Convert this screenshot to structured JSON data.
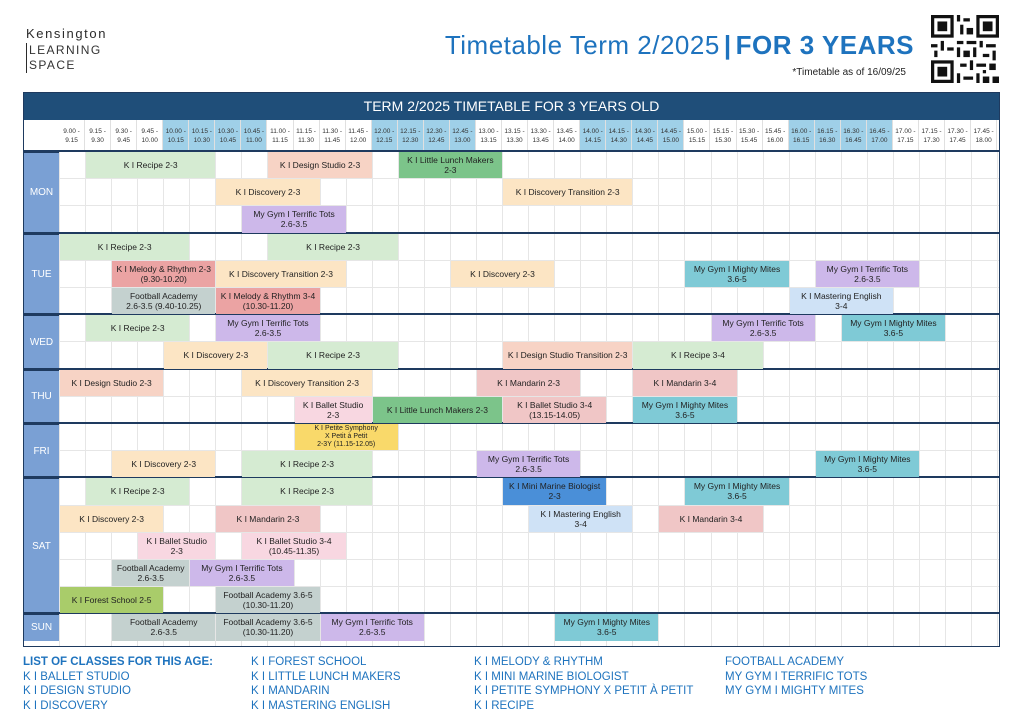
{
  "logo": {
    "line1": "Kensington",
    "line2": "LEARNING",
    "line3": "SPACE"
  },
  "header": {
    "title_main": "Timetable Term 2/2025",
    "title_sep": "|",
    "title_bold": "FOR 3 YEARS",
    "as_of": "*Timetable as of 16/09/25"
  },
  "banner": "TERM 2/2025 TIMETABLE FOR 3 YEARS OLD",
  "colors": {
    "recipe": "#d5ebd2",
    "design": "#f7d3c5",
    "lunch": "#7cc48a",
    "discovery": "#fce5c4",
    "gym": "#cdb8ea",
    "melody": "#eba3a3",
    "football": "#c4d1cf",
    "mandarin": "#f0c6c6",
    "ballet": "#f8d7e1",
    "mightymites": "#7fcad6",
    "mastering": "#cfe2f6",
    "petite": "#f9d96a",
    "marine": "#4a8fd8",
    "forest": "#a9cc6a",
    "slot_a": "#ffffff",
    "slot_b": "#9fd0e8",
    "day_bg": "#7aa0d4",
    "banner_bg": "#1f4e79",
    "accent": "#1e73be"
  },
  "slots": [
    "9.00 - 9.15",
    "9.15 - 9.30",
    "9.30 - 9.45",
    "9.45 - 10.00",
    "10.00 - 10.15",
    "10.15 - 10.30",
    "10.30 - 10.45",
    "10.45 - 11.00",
    "11.00 - 11.15",
    "11.15 - 11.30",
    "11.30 - 11.45",
    "11.45 - 12.00",
    "12.00 - 12.15",
    "12.15 - 12.30",
    "12.30 - 12.45",
    "12.45 - 13.00",
    "13.00 - 13.15",
    "13.15 - 13.30",
    "13.30 - 13.45",
    "13.45 - 14.00",
    "14.00 - 14.15",
    "14.15 - 14.30",
    "14.30 - 14.45",
    "14.45 - 15.00",
    "15.00 - 15.15",
    "15.15 - 15.30",
    "15.30 - 15.45",
    "15.45 - 16.00",
    "16.00 - 16.15",
    "16.15 - 16.30",
    "16.30 - 16.45",
    "16.45 - 17.00",
    "17.00 - 17.15",
    "17.15 - 17.30",
    "17.30 - 17.45",
    "17.45 - 18.00"
  ],
  "days": [
    {
      "name": "MON",
      "rows": 3
    },
    {
      "name": "TUE",
      "rows": 3
    },
    {
      "name": "WED",
      "rows": 2
    },
    {
      "name": "THU",
      "rows": 2
    },
    {
      "name": "FRI",
      "rows": 2
    },
    {
      "name": "SAT",
      "rows": 5
    },
    {
      "name": "SUN",
      "rows": 1
    }
  ],
  "classes": [
    {
      "label": "K I Recipe 2-3",
      "row": 0,
      "start": 1,
      "span": 5,
      "color": "recipe"
    },
    {
      "label": "K I Design Studio 2-3",
      "row": 0,
      "start": 8,
      "span": 4,
      "color": "design"
    },
    {
      "label": "K I Little Lunch Makers\n2-3",
      "row": 0,
      "start": 13,
      "span": 4,
      "color": "lunch"
    },
    {
      "label": "K I Discovery 2-3",
      "row": 1,
      "start": 6,
      "span": 4,
      "color": "discovery"
    },
    {
      "label": "K I Discovery Transition 2-3",
      "row": 1,
      "start": 17,
      "span": 5,
      "color": "discovery"
    },
    {
      "label": "My Gym I Terrific Tots\n2.6-3.5",
      "row": 2,
      "start": 7,
      "span": 4,
      "color": "gym"
    },
    {
      "label": "K I Recipe 2-3",
      "row": 3,
      "start": 0,
      "span": 5,
      "color": "recipe"
    },
    {
      "label": "K I Recipe 2-3",
      "row": 3,
      "start": 8,
      "span": 5,
      "color": "recipe"
    },
    {
      "label": "K I Melody & Rhythm 2-3\n(9.30-10.20)",
      "row": 4,
      "start": 2,
      "span": 4,
      "color": "melody"
    },
    {
      "label": "K I Discovery Transition 2-3",
      "row": 4,
      "start": 6,
      "span": 5,
      "color": "discovery"
    },
    {
      "label": "K I Discovery 2-3",
      "row": 4,
      "start": 15,
      "span": 4,
      "color": "discovery"
    },
    {
      "label": "My Gym I Mighty Mites\n3.6-5",
      "row": 4,
      "start": 24,
      "span": 4,
      "color": "mightymites"
    },
    {
      "label": "My Gym I Terrific Tots\n2.6-3.5",
      "row": 4,
      "start": 29,
      "span": 4,
      "color": "gym"
    },
    {
      "label": "Football Academy\n2.6-3.5 (9.40-10.25)",
      "row": 5,
      "start": 2,
      "span": 4,
      "color": "football"
    },
    {
      "label": "K I Melody & Rhythm 3-4\n(10.30-11.20)",
      "row": 5,
      "start": 6,
      "span": 4,
      "color": "melody"
    },
    {
      "label": "K I Mastering English\n3-4",
      "row": 5,
      "start": 28,
      "span": 4,
      "color": "mastering"
    },
    {
      "label": "K I Recipe 2-3",
      "row": 6,
      "start": 1,
      "span": 4,
      "color": "recipe"
    },
    {
      "label": "My Gym I Terrific Tots\n2.6-3.5",
      "row": 6,
      "start": 6,
      "span": 4,
      "color": "gym"
    },
    {
      "label": "My Gym I Terrific Tots\n2.6-3.5",
      "row": 6,
      "start": 25,
      "span": 4,
      "color": "gym"
    },
    {
      "label": "My Gym I Mighty Mites\n3.6-5",
      "row": 6,
      "start": 30,
      "span": 4,
      "color": "mightymites"
    },
    {
      "label": "K I Discovery 2-3",
      "row": 7,
      "start": 4,
      "span": 4,
      "color": "discovery"
    },
    {
      "label": "K I Recipe 2-3",
      "row": 7,
      "start": 8,
      "span": 5,
      "color": "recipe"
    },
    {
      "label": "K I Design Studio Transition 2-3",
      "row": 7,
      "start": 17,
      "span": 5,
      "color": "design"
    },
    {
      "label": "K I Recipe 3-4",
      "row": 7,
      "start": 22,
      "span": 5,
      "color": "recipe"
    },
    {
      "label": "K I Design Studio 2-3",
      "row": 8,
      "start": 0,
      "span": 4,
      "color": "design"
    },
    {
      "label": "K I Discovery Transition 2-3",
      "row": 8,
      "start": 7,
      "span": 5,
      "color": "discovery"
    },
    {
      "label": "K I Mandarin 2-3",
      "row": 8,
      "start": 16,
      "span": 4,
      "color": "mandarin"
    },
    {
      "label": "K I Mandarin 3-4",
      "row": 8,
      "start": 22,
      "span": 4,
      "color": "mandarin"
    },
    {
      "label": "K I Ballet Studio\n2-3",
      "row": 9,
      "start": 9,
      "span": 3,
      "color": "ballet"
    },
    {
      "label": "K I Little Lunch Makers 2-3",
      "row": 9,
      "start": 12,
      "span": 5,
      "color": "lunch"
    },
    {
      "label": "K I Ballet Studio 3-4\n(13.15-14.05)",
      "row": 9,
      "start": 17,
      "span": 4,
      "color": "mandarin"
    },
    {
      "label": "My Gym I Mighty Mites\n3.6-5",
      "row": 9,
      "start": 22,
      "span": 4,
      "color": "mightymites"
    },
    {
      "label": "K I Petite Symphony\nX Petit à Petit\n2-3Y (11.15-12.05)",
      "row": 10,
      "start": 9,
      "span": 4,
      "color": "petite"
    },
    {
      "label": "K I Discovery 2-3",
      "row": 11,
      "start": 2,
      "span": 4,
      "color": "discovery"
    },
    {
      "label": "K I Recipe 2-3",
      "row": 11,
      "start": 7,
      "span": 5,
      "color": "recipe"
    },
    {
      "label": "My Gym I Terrific Tots\n2.6-3.5",
      "row": 11,
      "start": 16,
      "span": 4,
      "color": "gym"
    },
    {
      "label": "My Gym I Mighty Mites\n3.6-5",
      "row": 11,
      "start": 29,
      "span": 4,
      "color": "mightymites"
    },
    {
      "label": "K I Recipe 2-3",
      "row": 12,
      "start": 1,
      "span": 4,
      "color": "recipe"
    },
    {
      "label": "K I Recipe 2-3",
      "row": 12,
      "start": 7,
      "span": 5,
      "color": "recipe"
    },
    {
      "label": "K I Mini Marine Biologist\n2-3",
      "row": 12,
      "start": 17,
      "span": 4,
      "color": "marine"
    },
    {
      "label": "My Gym I Mighty Mites\n3.6-5",
      "row": 12,
      "start": 24,
      "span": 4,
      "color": "mightymites"
    },
    {
      "label": "K I Discovery 2-3",
      "row": 13,
      "start": 0,
      "span": 4,
      "color": "discovery"
    },
    {
      "label": "K I Mandarin 2-3",
      "row": 13,
      "start": 6,
      "span": 4,
      "color": "mandarin"
    },
    {
      "label": "K I Mastering English\n3-4",
      "row": 13,
      "start": 18,
      "span": 4,
      "color": "mastering"
    },
    {
      "label": "K I Mandarin 3-4",
      "row": 13,
      "start": 23,
      "span": 4,
      "color": "mandarin"
    },
    {
      "label": "K I Ballet Studio\n2-3",
      "row": 14,
      "start": 3,
      "span": 3,
      "color": "ballet"
    },
    {
      "label": "K I Ballet Studio 3-4\n(10.45-11.35)",
      "row": 14,
      "start": 7,
      "span": 4,
      "color": "ballet"
    },
    {
      "label": "Football Academy\n2.6-3.5",
      "row": 15,
      "start": 2,
      "span": 3,
      "color": "football"
    },
    {
      "label": "My Gym I Terrific Tots\n2.6-3.5",
      "row": 15,
      "start": 5,
      "span": 4,
      "color": "gym"
    },
    {
      "label": "K I Forest School 2-5",
      "row": 16,
      "start": 0,
      "span": 4,
      "color": "forest"
    },
    {
      "label": "Football Academy 3.6-5\n(10.30-11.20)",
      "row": 16,
      "start": 6,
      "span": 4,
      "color": "football"
    },
    {
      "label": "Football Academy\n2.6-3.5",
      "row": 17,
      "start": 2,
      "span": 4,
      "color": "football"
    },
    {
      "label": "Football Academy 3.6-5\n(10.30-11.20)",
      "row": 17,
      "start": 6,
      "span": 4,
      "color": "football"
    },
    {
      "label": "My Gym I Terrific Tots\n2.6-3.5",
      "row": 17,
      "start": 10,
      "span": 4,
      "color": "gym"
    },
    {
      "label": "My Gym I Mighty Mites\n3.6-5",
      "row": 17,
      "start": 19,
      "span": 4,
      "color": "mightymites"
    }
  ],
  "list": {
    "heading": "LIST OF CLASSES FOR THIS AGE:",
    "col1": [
      "K I BALLET STUDIO",
      "K I DESIGN STUDIO",
      "K I DISCOVERY"
    ],
    "col2": [
      "K I FOREST SCHOOL",
      "K I LITTLE LUNCH MAKERS",
      "K I MANDARIN",
      "K I MASTERING ENGLISH"
    ],
    "col3": [
      "K I MELODY & RHYTHM",
      "K I MINI MARINE BIOLOGIST",
      "K I PETITE SYMPHONY X PETIT À PETIT",
      "K I RECIPE"
    ],
    "col4": [
      "FOOTBALL ACADEMY",
      "MY GYM I TERRIFIC TOTS",
      "MY GYM I MIGHTY MITES"
    ]
  }
}
